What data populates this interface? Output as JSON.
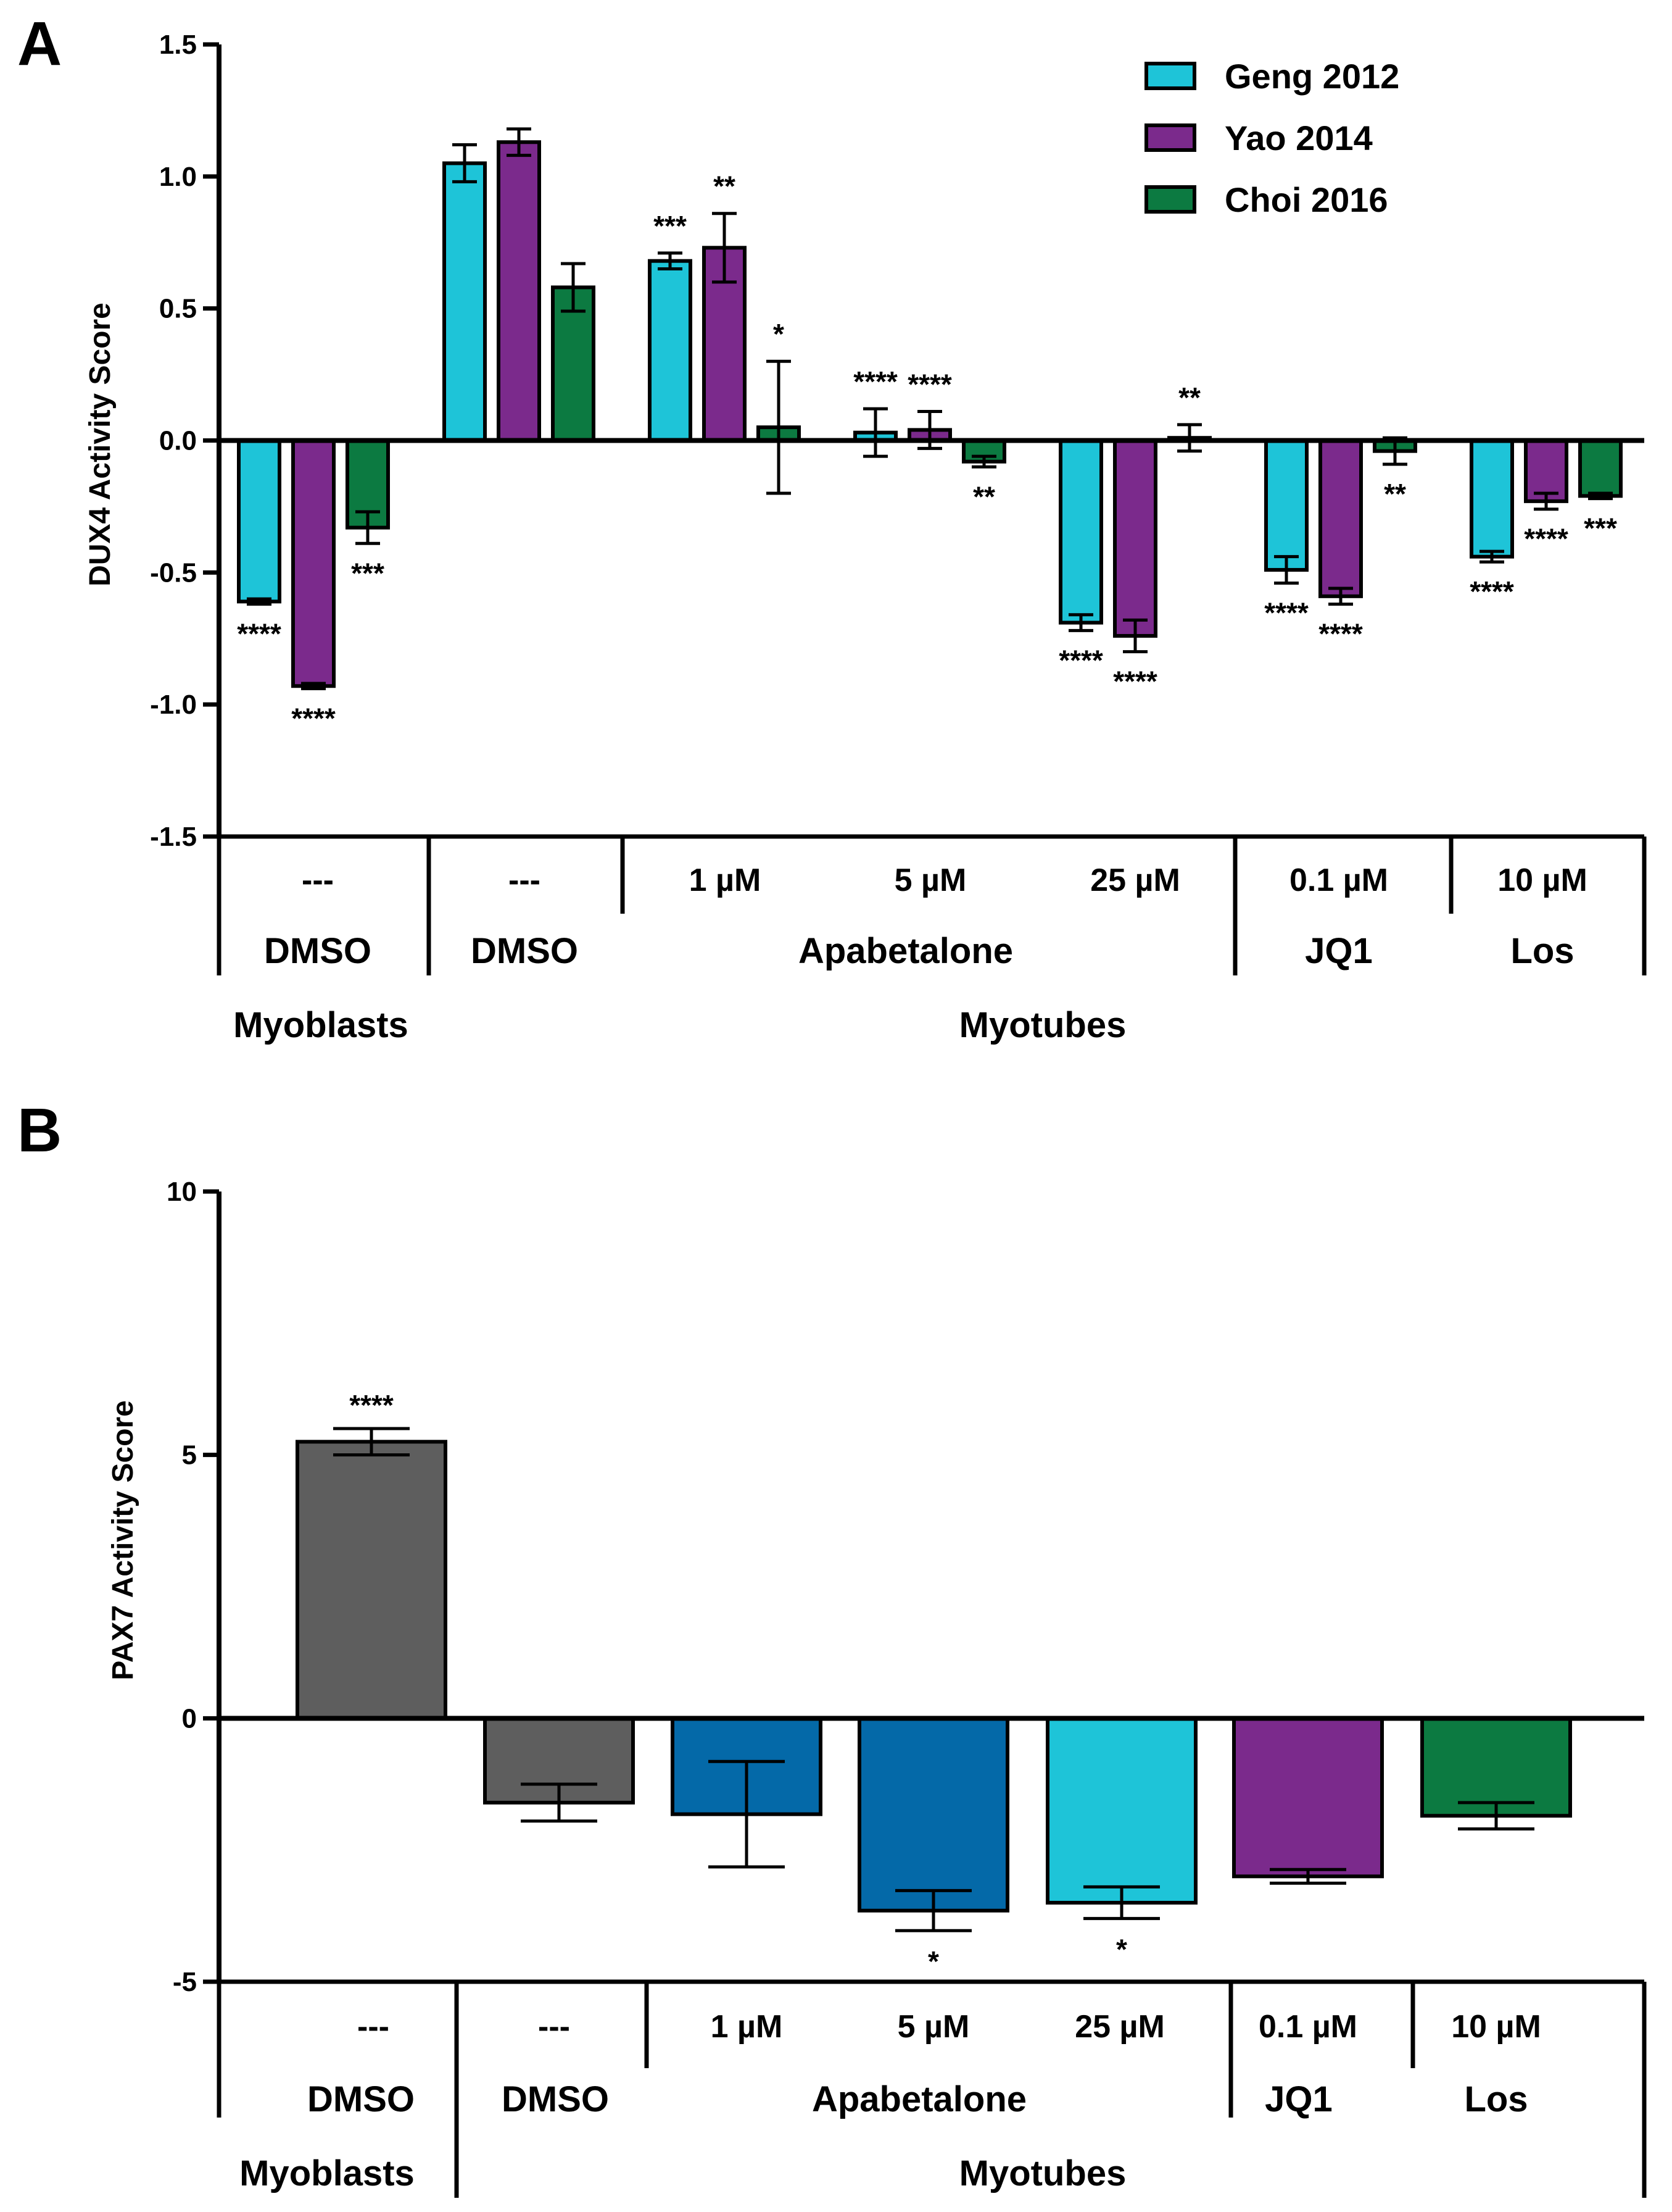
{
  "chart_data": [
    {
      "panel": "A",
      "type": "bar",
      "title": "",
      "ylabel": "DUX4 Activity Score",
      "ylim": [
        -1.5,
        1.5
      ],
      "yticks": [
        1.5,
        1.0,
        0.5,
        0.0,
        -0.5,
        -1.0,
        -1.5
      ],
      "ytick_labels": [
        "1.5",
        "1.0",
        "0.5",
        "0.0",
        "-0.5",
        "-1.0",
        "-1.5"
      ],
      "legend_position": "top-right",
      "series": [
        {
          "name": "Geng 2012",
          "color": "#1ec4d8",
          "values": [
            -0.61,
            1.05,
            0.68,
            0.03,
            -0.69,
            -0.49,
            -0.44
          ],
          "errors": [
            0.01,
            0.07,
            0.03,
            0.09,
            0.03,
            0.05,
            0.02
          ],
          "significance": [
            "****",
            "",
            "***",
            "****",
            "****",
            "****",
            "****"
          ]
        },
        {
          "name": "Yao 2014",
          "color": "#7b2a8c",
          "values": [
            -0.93,
            1.13,
            0.73,
            0.04,
            -0.74,
            -0.59,
            -0.23
          ],
          "errors": [
            0.01,
            0.05,
            0.13,
            0.07,
            0.06,
            0.03,
            0.03
          ],
          "significance": [
            "****",
            "",
            "**",
            "****",
            "****",
            "****",
            "****"
          ]
        },
        {
          "name": "Choi 2016",
          "color": "#0c7a41",
          "values": [
            -0.33,
            0.58,
            0.05,
            -0.08,
            0.01,
            -0.04,
            -0.21
          ],
          "errors": [
            0.06,
            0.09,
            0.25,
            0.02,
            0.05,
            0.05,
            0.01
          ],
          "significance": [
            "***",
            "",
            "*",
            "**",
            "**",
            "**",
            "***"
          ]
        }
      ],
      "categories": [
        {
          "concentration": "---",
          "compound": "DMSO",
          "cell": "Myoblasts"
        },
        {
          "concentration": "---",
          "compound": "DMSO",
          "cell": "Myotubes"
        },
        {
          "concentration": "1 µM",
          "compound": "Apabetalone",
          "cell": "Myotubes"
        },
        {
          "concentration": "5 µM",
          "compound": "Apabetalone",
          "cell": "Myotubes"
        },
        {
          "concentration": "25 µM",
          "compound": "Apabetalone",
          "cell": "Myotubes"
        },
        {
          "concentration": "0.1 µM",
          "compound": "JQ1",
          "cell": "Myotubes"
        },
        {
          "concentration": "10 µM",
          "compound": "Los",
          "cell": "Myotubes"
        }
      ],
      "compound_labels": [
        "DMSO",
        "DMSO",
        "Apabetalone",
        "JQ1",
        "Los"
      ],
      "cell_labels": [
        "Myoblasts",
        "Myotubes"
      ]
    },
    {
      "panel": "B",
      "type": "bar",
      "title": "",
      "ylabel": "PAX7 Activity Score",
      "ylim": [
        -5,
        10
      ],
      "yticks": [
        10,
        5,
        0,
        -5
      ],
      "ytick_labels": [
        "10",
        "5",
        "0",
        "-5"
      ],
      "values": [
        5.25,
        -1.6,
        -1.82,
        -3.65,
        -3.5,
        -3.0,
        -1.85
      ],
      "errors": [
        0.25,
        0.35,
        1.0,
        0.38,
        0.3,
        0.13,
        0.25
      ],
      "colors": [
        "#5e5e5e",
        "#5e5e5e",
        "#0469a8",
        "#0469a8",
        "#1ec4d8",
        "#7b2a8c",
        "#0c7a41"
      ],
      "significance": [
        "****",
        "",
        "",
        "*",
        "*",
        "",
        ""
      ],
      "categories": [
        {
          "concentration": "---",
          "compound": "DMSO",
          "cell": "Myoblasts"
        },
        {
          "concentration": "---",
          "compound": "DMSO",
          "cell": "Myotubes"
        },
        {
          "concentration": "1 µM",
          "compound": "Apabetalone",
          "cell": "Myotubes"
        },
        {
          "concentration": "5 µM",
          "compound": "Apabetalone",
          "cell": "Myotubes"
        },
        {
          "concentration": "25 µM",
          "compound": "Apabetalone",
          "cell": "Myotubes"
        },
        {
          "concentration": "0.1 µM",
          "compound": "JQ1",
          "cell": "Myotubes"
        },
        {
          "concentration": "10 µM",
          "compound": "Los",
          "cell": "Myotubes"
        }
      ],
      "compound_labels": [
        "DMSO",
        "DMSO",
        "Apabetalone",
        "JQ1",
        "Los"
      ],
      "cell_labels": [
        "Myoblasts",
        "Myotubes"
      ]
    }
  ]
}
